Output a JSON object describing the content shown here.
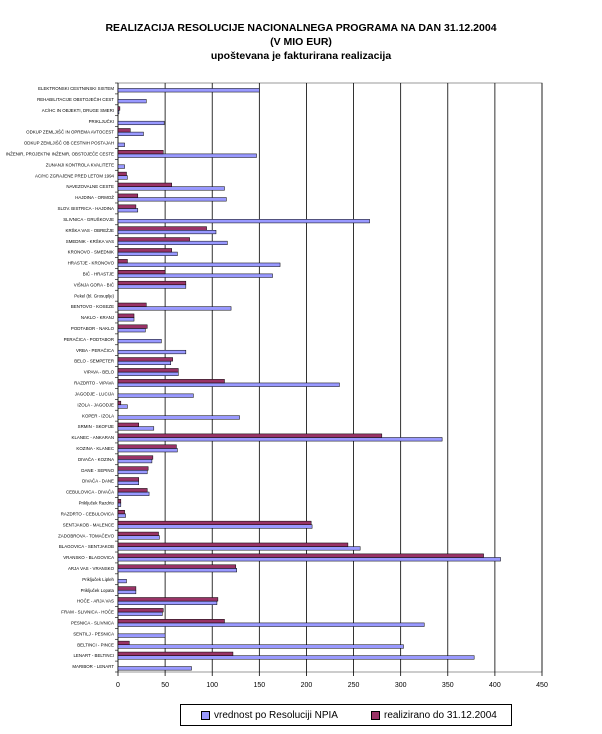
{
  "header": {
    "title_line1": "REALIZACIJA RESOLUCIJE NACIONALNEGA PROGRAMA NA DAN 31.12.2004",
    "title_line2": "(V MIO EUR)",
    "title_line3": "upoštevana je fakturirana realizacija"
  },
  "chart_data": {
    "type": "bar",
    "orientation": "horizontal",
    "title": "REALIZACIJA RESOLUCIJE NACIONALNEGA PROGRAMA NA DAN 31.12.2004 (V MIO EUR) upoštevana je fakturirana realizacija",
    "xlim": [
      0,
      450
    ],
    "xticks": [
      0,
      50,
      100,
      150,
      200,
      250,
      300,
      350,
      400,
      450
    ],
    "grid": true,
    "legend_position": "bottom",
    "categories": [
      "ELEKTRONSKI CESTNINSKI SISTEM",
      "REHABILITACIJE OBSTOJEČIH CEST",
      "AC/HC IN OBJEKTI, DRUGE SMERI",
      "PRIKLJUČKI",
      "ODKUP ZEMLJIŠČ IN OPREMA AVTOCEST",
      "ODKUP ZEMLJIŠČ OB CESTNIH POSTAJAH",
      "INŽENIR, PROJEKTNI INŽENIR, OBSTOJEČE CESTE",
      "ZUNANJI KONTROLA KVALITETE",
      "AC/HC ZGRAJENE PRED LETOM 1994",
      "NAVEZOVALNE CESTE",
      "HAJDINA - ORMOŽ",
      "SLOV. BISTRICA - HAJDINA",
      "SLIVNICA - GRUŠKOVJE",
      "KRŠKA VAS - OBREŽJE",
      "SMEDNIK - KRŠKA VAS",
      "KRONOVO - SMEDNIK",
      "HRASTJE - KRONOVO",
      "BIČ - HRASTJE",
      "VIŠNJA GORA - BIČ",
      "Pekel (bl. Grosuplje)",
      "BENTOVO - KOSEZE",
      "NAKLO - KRANJ",
      "PODTABOR - NAKLO",
      "PERAČICA - PODTABOR",
      "VRBA - PERAČICA",
      "BELO - SEMPETER",
      "VIPAVA - BELO",
      "RAZDRTO - VIPAVA",
      "JAGODJE - LUCIJA",
      "IZOLA - JAGODJE",
      "KOPER - IZOLA",
      "SRMIN - SKOFIJE",
      "KLANEC - ANKARAN",
      "KOZINA - KLANEC",
      "DIVAČA - KOZINA",
      "DANE - SEPINO",
      "DIVAČA - DANE",
      "CEBULOVICA - DIVAČA",
      "Priključek Razdrto",
      "RAZDRTO - CEBULOVICA",
      "SENTJAKOB - MALENCE",
      "ZADOBROVA - TOMAČEVO",
      "BLAGOVICA - SENTJAKOB",
      "VRANSKO - BLAGOVICA",
      "ARJA VAS - VRANSKO",
      "Priključek Lipleh",
      "Priključek Lopata",
      "HOČE - ARJA VAS",
      "FRAM - SLIVNICA - HOČE",
      "PESNICA - SLIVNICA",
      "SENTILJ - PESNICA",
      "BELTINCI - PINCE",
      "LENART - BELTINCI",
      "MARIBOR - LENART"
    ],
    "series": [
      {
        "name": "vrednost po Resoluciji NPIA",
        "color": "#9999ff",
        "values": [
          150,
          30,
          1,
          49,
          27,
          7,
          147,
          7,
          10,
          113,
          115,
          21,
          267,
          104,
          116,
          63,
          172,
          164,
          72,
          0,
          120,
          17,
          29,
          46,
          72,
          56,
          64,
          235,
          80,
          10,
          129,
          38,
          344,
          63,
          36,
          31,
          22,
          33,
          3,
          8,
          206,
          44,
          257,
          406,
          126,
          9,
          19,
          105,
          47,
          325,
          50,
          303,
          378,
          78
        ]
      },
      {
        "name": "realizirano do 31.12.2004",
        "color": "#993366",
        "values": [
          0,
          0,
          2,
          0,
          13,
          0,
          48,
          0,
          9,
          57,
          21,
          19,
          0,
          94,
          76,
          57,
          10,
          50,
          72,
          0,
          30,
          17,
          31,
          0,
          0,
          58,
          64,
          113,
          0,
          3,
          0,
          22,
          280,
          62,
          37,
          32,
          22,
          31,
          3,
          7,
          205,
          43,
          244,
          388,
          125,
          0,
          19,
          106,
          48,
          113,
          0,
          12,
          122,
          0
        ]
      }
    ]
  }
}
